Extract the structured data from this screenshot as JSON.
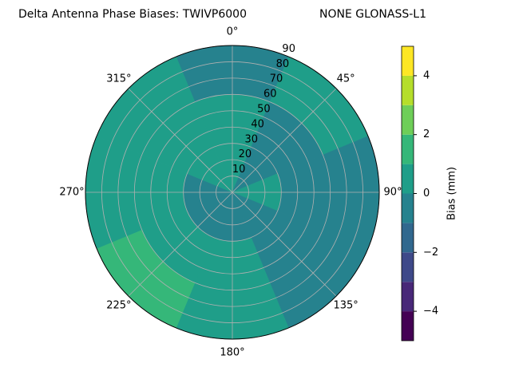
{
  "chart_data": {
    "type": "polar-contour",
    "title": "Delta Antenna Phase Biases: TWIVP6000",
    "subtitle": "NONE GLONASS-L1",
    "azimuths": [
      0,
      45,
      90,
      135,
      180,
      225,
      270,
      315
    ],
    "zenith_bins": [
      0,
      30,
      60,
      90
    ],
    "values": [
      [
        0.5,
        0.5,
        -0.5
      ],
      [
        -0.5,
        -0.5,
        0.5
      ],
      [
        0.5,
        -0.5,
        -0.5
      ],
      [
        -0.5,
        -0.5,
        -0.5
      ],
      [
        -0.5,
        0.5,
        0.5
      ],
      [
        -0.5,
        0.5,
        1.5
      ],
      [
        -0.5,
        0.5,
        0.5
      ],
      [
        0.5,
        0.5,
        0.5
      ]
    ],
    "rlim": [
      0,
      90
    ],
    "rticks": [
      10,
      20,
      30,
      40,
      50,
      60,
      70,
      80,
      90
    ],
    "thetaticks": [
      {
        "value": 0,
        "label": "0°"
      },
      {
        "value": 45,
        "label": "45°"
      },
      {
        "value": 90,
        "label": "90°"
      },
      {
        "value": 135,
        "label": "135°"
      },
      {
        "value": 180,
        "label": "180°"
      },
      {
        "value": 225,
        "label": "225°"
      },
      {
        "value": 270,
        "label": "270°"
      },
      {
        "value": 315,
        "label": "315°"
      }
    ],
    "grid": true,
    "colorbar": {
      "label": "Bias (mm)",
      "levels": [
        -5,
        -4,
        -3,
        -2,
        -1,
        0,
        1,
        2,
        3,
        4,
        5
      ],
      "colors": [
        "#440154",
        "#482878",
        "#3e4989",
        "#31688e",
        "#26828e",
        "#1f9e89",
        "#35b779",
        "#6ece58",
        "#b5de2b",
        "#fde725"
      ],
      "lim": [
        -5,
        5
      ],
      "ticks": [
        {
          "value": -4,
          "label": "−4"
        },
        {
          "value": -2,
          "label": "−2"
        },
        0,
        2,
        4
      ]
    }
  }
}
